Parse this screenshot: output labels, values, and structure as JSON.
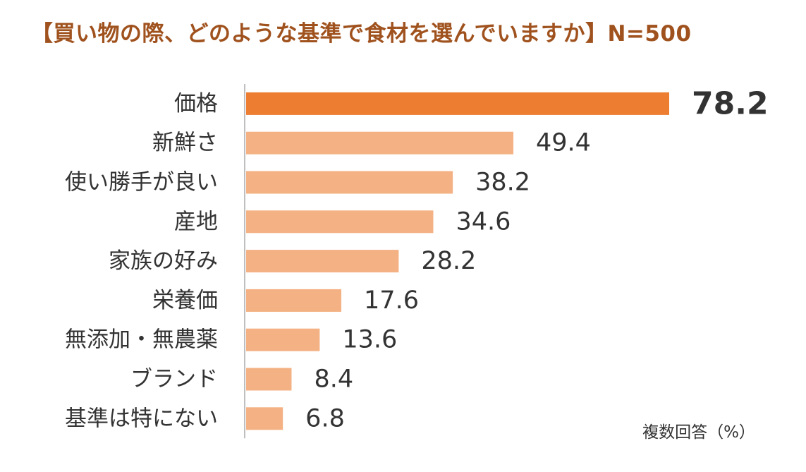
{
  "title": "【買い物の際、どのような基準で食材を選んでいますか】N=500",
  "note": "複数回答（%）",
  "colors": {
    "highlight_bar": "#ed7d31",
    "normal_bar": "#f4b183",
    "highlight_value": "#e60012",
    "text": "#333333",
    "axis": "#bfbfbf",
    "title": "#a0521e"
  },
  "chart_data": {
    "type": "bar",
    "orientation": "horizontal",
    "title": "【買い物の際、どのような基準で食材を選んでいますか】N=500",
    "xlabel": "",
    "ylabel": "",
    "unit": "%",
    "xlim": [
      0,
      100
    ],
    "highlight_index": 0,
    "categories": [
      "価格",
      "新鮮さ",
      "使い勝手が良い",
      "産地",
      "家族の好み",
      "栄養価",
      "無添加・無農薬",
      "ブランド",
      "基準は特にない"
    ],
    "values": [
      78.2,
      49.4,
      38.2,
      34.6,
      28.2,
      17.6,
      13.6,
      8.4,
      6.8
    ],
    "value_labels": [
      "78.2",
      "49.4",
      "38.2",
      "34.6",
      "28.2",
      "17.6",
      "13.6",
      "8.4",
      "6.8"
    ],
    "grid": false,
    "legend": "none"
  }
}
